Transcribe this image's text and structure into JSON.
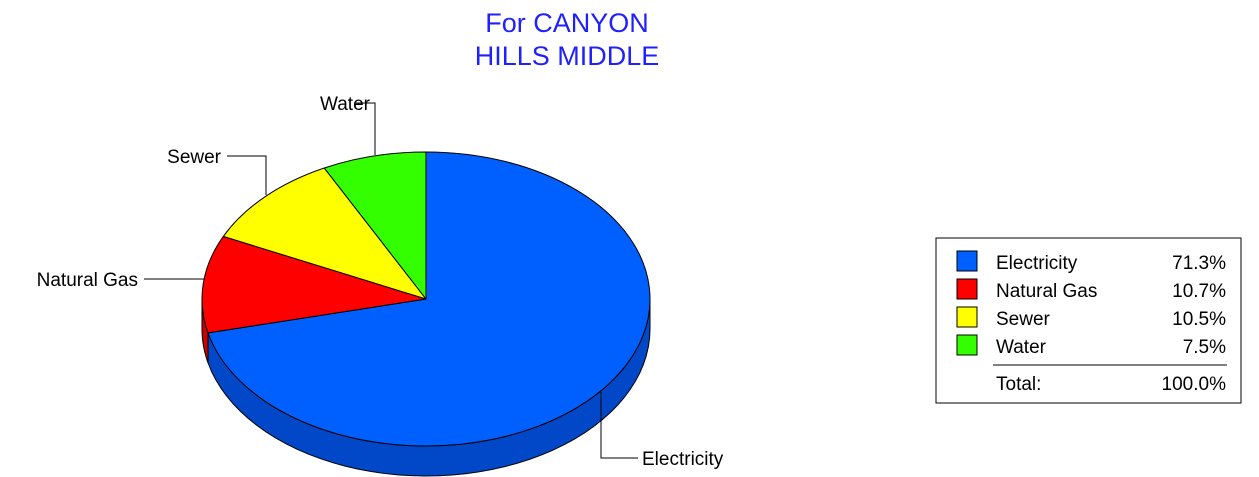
{
  "chart_data": {
    "type": "pie",
    "title_lines": [
      "For CANYON",
      "HILLS MIDDLE"
    ],
    "slices": [
      {
        "label": "Electricity",
        "value": 71.3,
        "value_text": "71.3%",
        "color": "#0060ff",
        "side_color": "#0048c8"
      },
      {
        "label": "Natural Gas",
        "value": 10.7,
        "value_text": "10.7%",
        "color": "#ff0000",
        "side_color": "#c80000"
      },
      {
        "label": "Sewer",
        "value": 10.5,
        "value_text": "10.5%",
        "color": "#ffff00",
        "side_color": "#c8c800"
      },
      {
        "label": "Water",
        "value": 7.5,
        "value_text": "7.5%",
        "color": "#33ff00",
        "side_color": "#22c000"
      }
    ],
    "legend": {
      "placement": "right",
      "total_label": "Total:",
      "total_value": "100.0%"
    },
    "colors": {
      "title": "#1f1fff",
      "outline": "#000000"
    }
  }
}
